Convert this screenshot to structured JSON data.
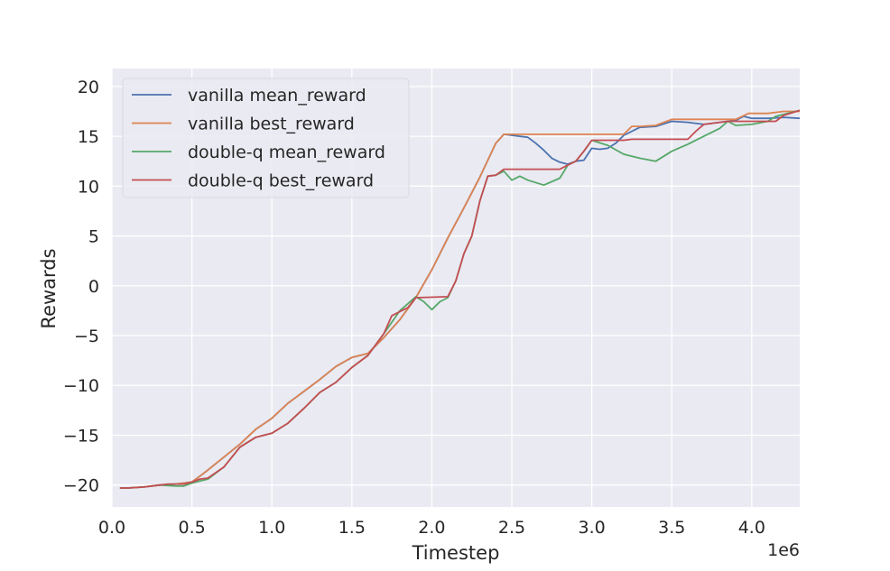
{
  "chart_data": {
    "type": "line",
    "xlabel": "Timestep",
    "ylabel": "Rewards",
    "x_scale_label": "1e6",
    "x_scale_factor": 1000000,
    "xlim": [
      0,
      4300000
    ],
    "ylim": [
      -22.2,
      21.8
    ],
    "x_ticks": [
      0,
      500000,
      1000000,
      1500000,
      2000000,
      2500000,
      3000000,
      3500000,
      4000000
    ],
    "x_tick_labels": [
      "0.0",
      "0.5",
      "1.0",
      "1.5",
      "2.0",
      "2.5",
      "3.0",
      "3.5",
      "4.0"
    ],
    "y_ticks": [
      -20,
      -15,
      -10,
      -5,
      0,
      5,
      10,
      15,
      20
    ],
    "y_tick_labels": [
      "−20",
      "−15",
      "−10",
      "−5",
      "0",
      "5",
      "10",
      "15",
      "20"
    ],
    "grid": true,
    "legend_position": "upper-left",
    "series": [
      {
        "name": "vanilla mean_reward",
        "color": "#4c72b0",
        "points": [
          [
            50000,
            -20.3
          ],
          [
            100000,
            -20.3
          ],
          [
            200000,
            -20.2
          ],
          [
            300000,
            -20.0
          ],
          [
            400000,
            -19.9
          ],
          [
            500000,
            -19.7
          ],
          [
            550000,
            -19.1
          ],
          [
            600000,
            -18.5
          ],
          [
            700000,
            -17.2
          ],
          [
            800000,
            -15.9
          ],
          [
            900000,
            -14.4
          ],
          [
            1000000,
            -13.3
          ],
          [
            1100000,
            -11.8
          ],
          [
            1200000,
            -10.6
          ],
          [
            1300000,
            -9.4
          ],
          [
            1400000,
            -8.1
          ],
          [
            1500000,
            -7.2
          ],
          [
            1600000,
            -6.8
          ],
          [
            1700000,
            -5.2
          ],
          [
            1800000,
            -3.4
          ],
          [
            1900000,
            -1.2
          ],
          [
            2000000,
            1.6
          ],
          [
            2100000,
            4.8
          ],
          [
            2200000,
            7.8
          ],
          [
            2300000,
            10.9
          ],
          [
            2400000,
            14.3
          ],
          [
            2450000,
            15.2
          ],
          [
            2500000,
            15.1
          ],
          [
            2550000,
            15.0
          ],
          [
            2600000,
            14.9
          ],
          [
            2650000,
            14.3
          ],
          [
            2700000,
            13.6
          ],
          [
            2750000,
            12.8
          ],
          [
            2800000,
            12.4
          ],
          [
            2850000,
            12.2
          ],
          [
            2900000,
            12.5
          ],
          [
            2950000,
            12.6
          ],
          [
            3000000,
            13.8
          ],
          [
            3050000,
            13.7
          ],
          [
            3100000,
            13.8
          ],
          [
            3150000,
            14.3
          ],
          [
            3200000,
            15.1
          ],
          [
            3300000,
            15.9
          ],
          [
            3400000,
            16.0
          ],
          [
            3500000,
            16.5
          ],
          [
            3600000,
            16.4
          ],
          [
            3700000,
            16.2
          ],
          [
            3800000,
            16.4
          ],
          [
            3900000,
            16.6
          ],
          [
            3950000,
            17.0
          ],
          [
            4000000,
            16.8
          ],
          [
            4100000,
            16.8
          ],
          [
            4200000,
            16.9
          ],
          [
            4300000,
            16.8
          ]
        ]
      },
      {
        "name": "vanilla best_reward",
        "color": "#dd8452",
        "points": [
          [
            50000,
            -20.3
          ],
          [
            100000,
            -20.3
          ],
          [
            200000,
            -20.2
          ],
          [
            300000,
            -20.0
          ],
          [
            400000,
            -19.9
          ],
          [
            500000,
            -19.7
          ],
          [
            550000,
            -19.1
          ],
          [
            600000,
            -18.5
          ],
          [
            700000,
            -17.2
          ],
          [
            800000,
            -15.9
          ],
          [
            900000,
            -14.4
          ],
          [
            1000000,
            -13.3
          ],
          [
            1100000,
            -11.8
          ],
          [
            1200000,
            -10.6
          ],
          [
            1300000,
            -9.4
          ],
          [
            1400000,
            -8.1
          ],
          [
            1500000,
            -7.2
          ],
          [
            1600000,
            -6.8
          ],
          [
            1700000,
            -5.2
          ],
          [
            1800000,
            -3.4
          ],
          [
            1900000,
            -1.2
          ],
          [
            2000000,
            1.6
          ],
          [
            2100000,
            4.8
          ],
          [
            2200000,
            7.8
          ],
          [
            2300000,
            10.9
          ],
          [
            2400000,
            14.3
          ],
          [
            2450000,
            15.2
          ],
          [
            2800000,
            15.2
          ],
          [
            3200000,
            15.2
          ],
          [
            3250000,
            16.0
          ],
          [
            3300000,
            16.0
          ],
          [
            3400000,
            16.1
          ],
          [
            3500000,
            16.7
          ],
          [
            3900000,
            16.7
          ],
          [
            3980000,
            17.3
          ],
          [
            4100000,
            17.3
          ],
          [
            4200000,
            17.5
          ],
          [
            4300000,
            17.5
          ]
        ]
      },
      {
        "name": "double-q mean_reward",
        "color": "#55a868",
        "points": [
          [
            50000,
            -20.3
          ],
          [
            100000,
            -20.3
          ],
          [
            200000,
            -20.2
          ],
          [
            300000,
            -20.0
          ],
          [
            400000,
            -20.1
          ],
          [
            450000,
            -20.1
          ],
          [
            500000,
            -19.8
          ],
          [
            550000,
            -19.6
          ],
          [
            600000,
            -19.4
          ],
          [
            700000,
            -18.2
          ],
          [
            800000,
            -16.2
          ],
          [
            900000,
            -15.2
          ],
          [
            1000000,
            -14.8
          ],
          [
            1100000,
            -13.8
          ],
          [
            1200000,
            -12.3
          ],
          [
            1300000,
            -10.7
          ],
          [
            1400000,
            -9.7
          ],
          [
            1500000,
            -8.2
          ],
          [
            1600000,
            -7.0
          ],
          [
            1700000,
            -4.8
          ],
          [
            1800000,
            -2.5
          ],
          [
            1900000,
            -1.1
          ],
          [
            1950000,
            -1.6
          ],
          [
            2000000,
            -2.4
          ],
          [
            2050000,
            -1.6
          ],
          [
            2100000,
            -1.2
          ],
          [
            2150000,
            0.5
          ],
          [
            2200000,
            3.2
          ],
          [
            2250000,
            5.0
          ],
          [
            2300000,
            8.5
          ],
          [
            2350000,
            11.0
          ],
          [
            2400000,
            11.1
          ],
          [
            2450000,
            11.5
          ],
          [
            2500000,
            10.6
          ],
          [
            2550000,
            11.0
          ],
          [
            2600000,
            10.6
          ],
          [
            2700000,
            10.1
          ],
          [
            2800000,
            10.8
          ],
          [
            2850000,
            12.1
          ],
          [
            2900000,
            12.5
          ],
          [
            2950000,
            13.5
          ],
          [
            3000000,
            14.6
          ],
          [
            3100000,
            14.1
          ],
          [
            3200000,
            13.2
          ],
          [
            3300000,
            12.8
          ],
          [
            3400000,
            12.5
          ],
          [
            3450000,
            13.0
          ],
          [
            3500000,
            13.5
          ],
          [
            3600000,
            14.2
          ],
          [
            3700000,
            15.0
          ],
          [
            3800000,
            15.8
          ],
          [
            3850000,
            16.5
          ],
          [
            3900000,
            16.1
          ],
          [
            4000000,
            16.2
          ],
          [
            4100000,
            16.5
          ],
          [
            4150000,
            17.0
          ],
          [
            4300000,
            17.6
          ]
        ]
      },
      {
        "name": "double-q best_reward",
        "color": "#c44e52",
        "points": [
          [
            50000,
            -20.3
          ],
          [
            100000,
            -20.3
          ],
          [
            200000,
            -20.2
          ],
          [
            300000,
            -20.0
          ],
          [
            350000,
            -19.9
          ],
          [
            450000,
            -19.9
          ],
          [
            500000,
            -19.7
          ],
          [
            550000,
            -19.4
          ],
          [
            600000,
            -19.3
          ],
          [
            700000,
            -18.2
          ],
          [
            800000,
            -16.2
          ],
          [
            900000,
            -15.2
          ],
          [
            1000000,
            -14.8
          ],
          [
            1100000,
            -13.8
          ],
          [
            1200000,
            -12.3
          ],
          [
            1300000,
            -10.7
          ],
          [
            1400000,
            -9.7
          ],
          [
            1500000,
            -8.2
          ],
          [
            1600000,
            -7.0
          ],
          [
            1700000,
            -4.8
          ],
          [
            1750000,
            -3.0
          ],
          [
            1850000,
            -2.2
          ],
          [
            1900000,
            -1.2
          ],
          [
            2100000,
            -1.1
          ],
          [
            2150000,
            0.5
          ],
          [
            2200000,
            3.2
          ],
          [
            2250000,
            5.0
          ],
          [
            2300000,
            8.5
          ],
          [
            2350000,
            11.0
          ],
          [
            2400000,
            11.1
          ],
          [
            2450000,
            11.7
          ],
          [
            2800000,
            11.7
          ],
          [
            2850000,
            12.1
          ],
          [
            2900000,
            12.5
          ],
          [
            2950000,
            13.5
          ],
          [
            3000000,
            14.6
          ],
          [
            3200000,
            14.6
          ],
          [
            3250000,
            14.7
          ],
          [
            3600000,
            14.7
          ],
          [
            3650000,
            15.5
          ],
          [
            3700000,
            16.2
          ],
          [
            3800000,
            16.4
          ],
          [
            3850000,
            16.5
          ],
          [
            4150000,
            16.5
          ],
          [
            4200000,
            17.1
          ],
          [
            4300000,
            17.6
          ]
        ]
      }
    ]
  }
}
